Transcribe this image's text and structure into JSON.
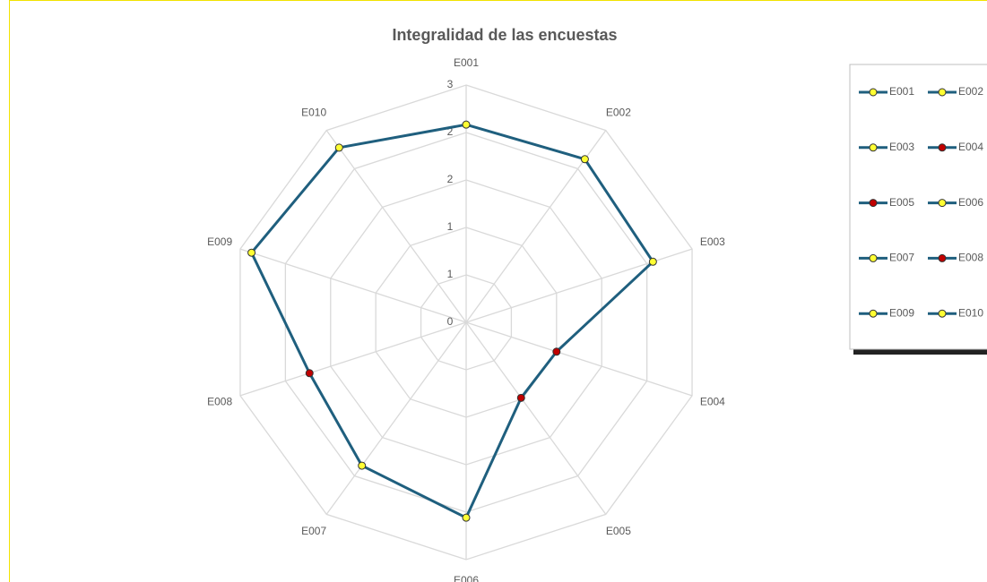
{
  "chart_data": {
    "type": "radar",
    "title": "Integralidad de las encuestas",
    "categories": [
      "E001",
      "E002",
      "E003",
      "E004",
      "E005",
      "E006",
      "E007",
      "E008",
      "E009",
      "E010"
    ],
    "values": [
      2.5,
      2.55,
      2.48,
      1.2,
      1.18,
      2.47,
      2.24,
      2.08,
      2.85,
      2.73
    ],
    "color": "#1f5f7e",
    "point_colors": [
      "#ffff33",
      "#ffff33",
      "#ffff33",
      "#c00000",
      "#c00000",
      "#ffff33",
      "#ffff33",
      "#c00000",
      "#ffff33",
      "#ffff33"
    ],
    "rlim": [
      0,
      3
    ],
    "rticks": [
      0,
      {
        "value": 0.6,
        "label": "1"
      },
      {
        "value": 1.2,
        "label": "1"
      },
      {
        "value": 1.8,
        "label": "2"
      },
      {
        "value": 2.4,
        "label": "2"
      },
      3
    ],
    "grid": true,
    "legend": "right"
  }
}
